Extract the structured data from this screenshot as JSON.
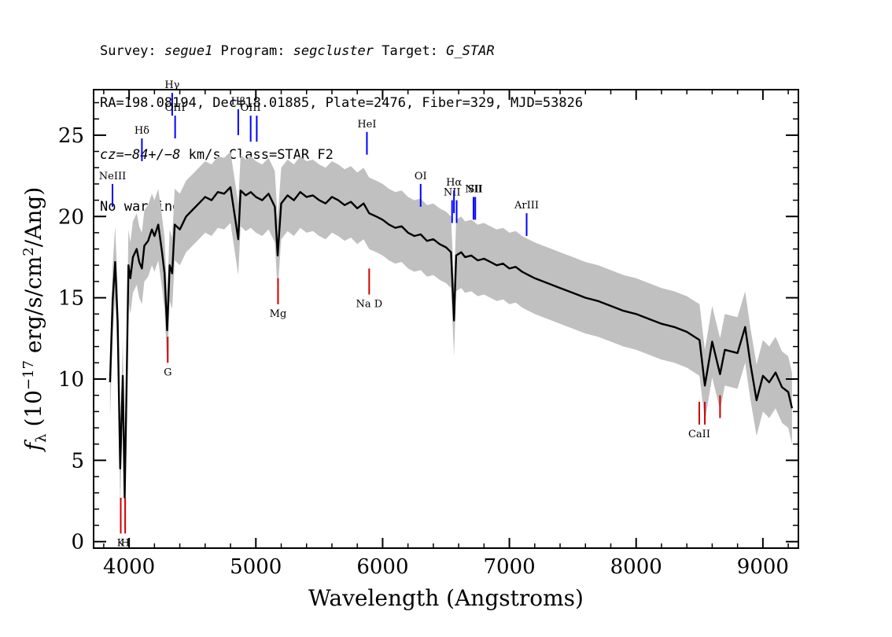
{
  "header": {
    "line1": {
      "survey_label": "Survey: ",
      "survey": "segue1",
      "program_label": " Program: ",
      "program": "segcluster",
      "target_label": " Target: ",
      "target": "G_STAR"
    },
    "line2": "RA=198.08194, Dec=18.01885, Plate=2476, Fiber=329, MJD=53826",
    "line3": {
      "cz_label": "cz",
      "cz_value": "=−84+/−8",
      "rest": " km/s Class=STAR F2"
    },
    "line4": "No warnings."
  },
  "chart_data": {
    "type": "line",
    "xlabel": "Wavelength (Angstroms)",
    "ylabel_parts": [
      "f",
      "λ",
      " (10",
      "−17",
      " erg/s/cm",
      "2",
      "/Ang)"
    ],
    "xlim": [
      3720,
      9280
    ],
    "ylim": [
      -0.4,
      27.8
    ],
    "x_ticks": [
      4000,
      5000,
      6000,
      7000,
      8000,
      9000
    ],
    "y_ticks": [
      0,
      5,
      10,
      15,
      20,
      25
    ],
    "grid": false,
    "series": [
      {
        "color": "#000000",
        "points": [
          [
            3850,
            9.8
          ],
          [
            3870,
            14.8
          ],
          [
            3890,
            17.2
          ],
          [
            3910,
            13.5
          ],
          [
            3930,
            4.5
          ],
          [
            3950,
            10.2
          ],
          [
            3965,
            2.7
          ],
          [
            3980,
            9.5
          ],
          [
            3995,
            17.0
          ],
          [
            4010,
            16.2
          ],
          [
            4030,
            17.5
          ],
          [
            4060,
            18.0
          ],
          [
            4080,
            17.2
          ],
          [
            4101,
            16.8
          ],
          [
            4120,
            18.2
          ],
          [
            4150,
            18.5
          ],
          [
            4180,
            19.2
          ],
          [
            4200,
            18.8
          ],
          [
            4230,
            19.5
          ],
          [
            4260,
            17.8
          ],
          [
            4280,
            16.5
          ],
          [
            4300,
            13.0
          ],
          [
            4320,
            17.0
          ],
          [
            4340,
            16.5
          ],
          [
            4360,
            19.5
          ],
          [
            4400,
            19.2
          ],
          [
            4450,
            20.0
          ],
          [
            4500,
            20.4
          ],
          [
            4550,
            20.8
          ],
          [
            4600,
            21.2
          ],
          [
            4650,
            21.0
          ],
          [
            4700,
            21.5
          ],
          [
            4750,
            21.4
          ],
          [
            4800,
            21.8
          ],
          [
            4861,
            18.6
          ],
          [
            4880,
            21.6
          ],
          [
            4920,
            21.3
          ],
          [
            4960,
            21.5
          ],
          [
            5000,
            21.2
          ],
          [
            5050,
            21.0
          ],
          [
            5100,
            21.4
          ],
          [
            5150,
            20.6
          ],
          [
            5172,
            17.6
          ],
          [
            5200,
            20.8
          ],
          [
            5250,
            21.3
          ],
          [
            5300,
            21.0
          ],
          [
            5350,
            21.5
          ],
          [
            5400,
            21.2
          ],
          [
            5450,
            21.3
          ],
          [
            5500,
            21.0
          ],
          [
            5550,
            20.8
          ],
          [
            5600,
            21.2
          ],
          [
            5650,
            21.0
          ],
          [
            5700,
            20.7
          ],
          [
            5750,
            20.9
          ],
          [
            5800,
            20.5
          ],
          [
            5850,
            20.8
          ],
          [
            5893,
            20.2
          ],
          [
            5950,
            20.0
          ],
          [
            6000,
            19.8
          ],
          [
            6050,
            19.5
          ],
          [
            6100,
            19.3
          ],
          [
            6150,
            19.4
          ],
          [
            6200,
            19.0
          ],
          [
            6250,
            18.8
          ],
          [
            6300,
            18.9
          ],
          [
            6350,
            18.5
          ],
          [
            6400,
            18.6
          ],
          [
            6450,
            18.3
          ],
          [
            6500,
            18.1
          ],
          [
            6540,
            17.8
          ],
          [
            6563,
            13.6
          ],
          [
            6580,
            17.6
          ],
          [
            6620,
            17.8
          ],
          [
            6650,
            17.5
          ],
          [
            6700,
            17.6
          ],
          [
            6750,
            17.3
          ],
          [
            6800,
            17.4
          ],
          [
            6850,
            17.2
          ],
          [
            6900,
            17.0
          ],
          [
            6950,
            17.1
          ],
          [
            7000,
            16.8
          ],
          [
            7050,
            16.9
          ],
          [
            7100,
            16.6
          ],
          [
            7150,
            16.4
          ],
          [
            7200,
            16.2
          ],
          [
            7300,
            15.9
          ],
          [
            7400,
            15.6
          ],
          [
            7500,
            15.3
          ],
          [
            7600,
            15.0
          ],
          [
            7700,
            14.8
          ],
          [
            7800,
            14.5
          ],
          [
            7900,
            14.2
          ],
          [
            8000,
            14.0
          ],
          [
            8100,
            13.7
          ],
          [
            8200,
            13.4
          ],
          [
            8300,
            13.2
          ],
          [
            8400,
            12.9
          ],
          [
            8500,
            12.4
          ],
          [
            8542,
            9.6
          ],
          [
            8600,
            12.3
          ],
          [
            8662,
            10.3
          ],
          [
            8700,
            11.8
          ],
          [
            8800,
            11.6
          ],
          [
            8860,
            13.2
          ],
          [
            8900,
            11.0
          ],
          [
            8950,
            8.7
          ],
          [
            9000,
            10.2
          ],
          [
            9050,
            9.8
          ],
          [
            9100,
            10.4
          ],
          [
            9150,
            9.5
          ],
          [
            9200,
            9.2
          ],
          [
            9230,
            8.2
          ]
        ]
      }
    ],
    "emission_lines": [
      {
        "label": "NeIII",
        "x": 3869,
        "y_bottom": 20.6,
        "y_top": 22.0
      },
      {
        "label": "Hδ",
        "x": 4101,
        "y_bottom": 23.4,
        "y_top": 24.8
      },
      {
        "label": "Hγ",
        "x": 4340,
        "y_bottom": 26.2,
        "y_top": 27.6
      },
      {
        "label": "OIII",
        "x": 4363,
        "y_bottom": 24.8,
        "y_top": 26.2
      },
      {
        "label": "Hβ",
        "x": 4861,
        "y_bottom": 25.0,
        "y_top": 26.6
      },
      {
        "label": "OIII",
        "x": 4959,
        "y_bottom": 24.6,
        "y_top": 26.2
      },
      {
        "label": "",
        "x": 5007,
        "y_bottom": 24.6,
        "y_top": 26.2
      },
      {
        "label": "HeI",
        "x": 5876,
        "y_bottom": 23.8,
        "y_top": 25.2
      },
      {
        "label": "OI",
        "x": 6300,
        "y_bottom": 20.6,
        "y_top": 22.0
      },
      {
        "label": "NII",
        "x": 6548,
        "y_bottom": 19.6,
        "y_top": 21.0
      },
      {
        "label": "Hα",
        "x": 6563,
        "y_bottom": 20.2,
        "y_top": 21.6
      },
      {
        "label": "",
        "x": 6584,
        "y_bottom": 19.6,
        "y_top": 21.0
      },
      {
        "label": "NII",
        "x": 6717,
        "y_bottom": 19.8,
        "y_top": 21.2
      },
      {
        "label": "SII",
        "x": 6731,
        "y_bottom": 19.8,
        "y_top": 21.2
      },
      {
        "label": "ArIII",
        "x": 7136,
        "y_bottom": 18.8,
        "y_top": 20.2
      }
    ],
    "absorption_lines": [
      {
        "label": "K",
        "x": 3934,
        "y_bottom": 0.5,
        "y_top": 2.7
      },
      {
        "label": "H",
        "x": 3969,
        "y_bottom": 0.5,
        "y_top": 2.7
      },
      {
        "label": "G",
        "x": 4305,
        "y_bottom": 11.0,
        "y_top": 12.6
      },
      {
        "label": "Mg",
        "x": 5175,
        "y_bottom": 14.6,
        "y_top": 16.2
      },
      {
        "label": "Na D",
        "x": 5894,
        "y_bottom": 15.2,
        "y_top": 16.8
      },
      {
        "label": "CaII",
        "x": 8498,
        "y_bottom": 7.2,
        "y_top": 8.6
      },
      {
        "label": "",
        "x": 8542,
        "y_bottom": 7.2,
        "y_top": 8.6
      },
      {
        "label": "",
        "x": 8662,
        "y_bottom": 7.6,
        "y_top": 9.0
      }
    ],
    "colors": {
      "spectrum": "#000000",
      "error": "#c0c0c0",
      "emission": "#0000ff",
      "absorption": "#d00000"
    }
  }
}
